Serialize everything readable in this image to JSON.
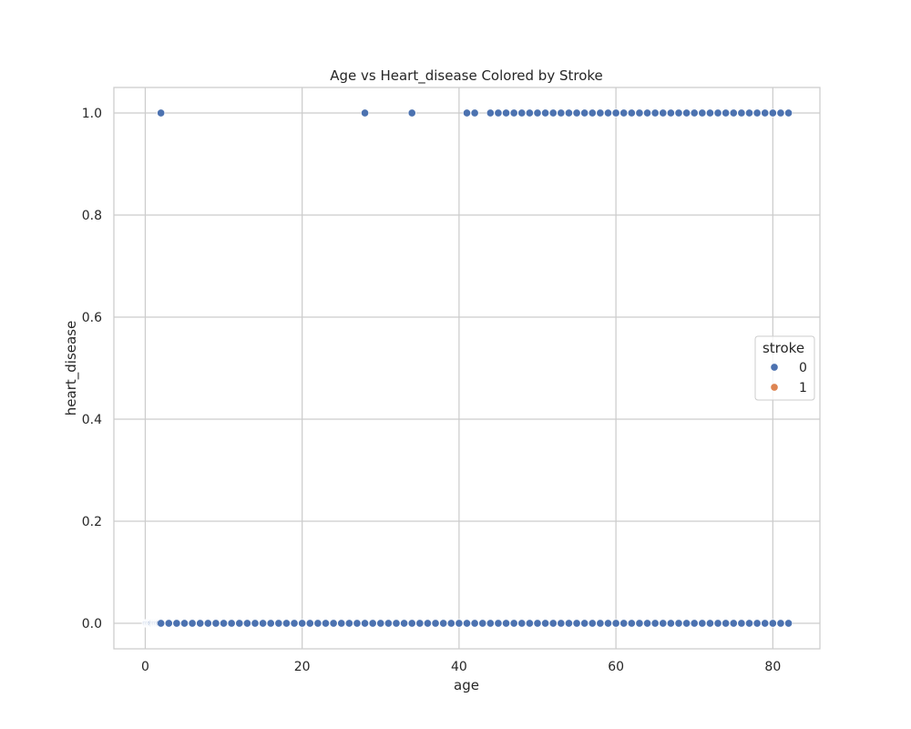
{
  "chart_data": {
    "type": "scatter",
    "title": "Age vs Heart_disease Colored by Stroke",
    "xlabel": "age",
    "ylabel": "heart_disease",
    "xlim": [
      -4.0,
      86.0
    ],
    "ylim": [
      -0.05,
      1.05
    ],
    "xticks": [
      0,
      20,
      40,
      60,
      80
    ],
    "yticks": [
      0.0,
      0.2,
      0.4,
      0.6,
      0.8,
      1.0
    ],
    "xtick_labels": [
      "0",
      "20",
      "40",
      "60",
      "80"
    ],
    "ytick_labels": [
      "0.0",
      "0.2",
      "0.4",
      "0.6",
      "0.8",
      "1.0"
    ],
    "grid": true,
    "legend": {
      "title": "stroke",
      "placement": "center-right",
      "entries": [
        {
          "label": "0",
          "color": "#4c72b0"
        },
        {
          "label": "1",
          "color": "#dd8452"
        }
      ]
    },
    "series": [
      {
        "name": "0",
        "color": "#4c72b0",
        "points": [
          [
            0.08,
            0
          ],
          [
            0.16,
            0
          ],
          [
            0.24,
            0
          ],
          [
            0.32,
            0
          ],
          [
            0.4,
            0
          ],
          [
            0.48,
            0
          ],
          [
            0.56,
            0
          ],
          [
            0.64,
            0
          ],
          [
            0.72,
            0
          ],
          [
            0.8,
            0
          ],
          [
            0.88,
            0
          ],
          [
            1.0,
            0
          ],
          [
            1.08,
            0
          ],
          [
            1.16,
            0
          ],
          [
            1.24,
            0
          ],
          [
            1.32,
            0
          ],
          [
            1.4,
            0
          ],
          [
            1.48,
            0
          ],
          [
            1.56,
            0
          ],
          [
            1.64,
            0
          ],
          [
            1.72,
            0
          ],
          [
            1.8,
            0
          ],
          [
            1.88,
            0
          ],
          [
            2,
            0
          ],
          [
            3,
            0
          ],
          [
            4,
            0
          ],
          [
            5,
            0
          ],
          [
            6,
            0
          ],
          [
            7,
            0
          ],
          [
            8,
            0
          ],
          [
            9,
            0
          ],
          [
            10,
            0
          ],
          [
            11,
            0
          ],
          [
            12,
            0
          ],
          [
            13,
            0
          ],
          [
            14,
            0
          ],
          [
            15,
            0
          ],
          [
            16,
            0
          ],
          [
            17,
            0
          ],
          [
            18,
            0
          ],
          [
            19,
            0
          ],
          [
            20,
            0
          ],
          [
            21,
            0
          ],
          [
            22,
            0
          ],
          [
            23,
            0
          ],
          [
            24,
            0
          ],
          [
            25,
            0
          ],
          [
            26,
            0
          ],
          [
            27,
            0
          ],
          [
            28,
            0
          ],
          [
            29,
            0
          ],
          [
            30,
            0
          ],
          [
            31,
            0
          ],
          [
            32,
            0
          ],
          [
            33,
            0
          ],
          [
            34,
            0
          ],
          [
            35,
            0
          ],
          [
            36,
            0
          ],
          [
            37,
            0
          ],
          [
            38,
            0
          ],
          [
            39,
            0
          ],
          [
            40,
            0
          ],
          [
            41,
            0
          ],
          [
            42,
            0
          ],
          [
            43,
            0
          ],
          [
            44,
            0
          ],
          [
            45,
            0
          ],
          [
            46,
            0
          ],
          [
            47,
            0
          ],
          [
            48,
            0
          ],
          [
            49,
            0
          ],
          [
            50,
            0
          ],
          [
            51,
            0
          ],
          [
            52,
            0
          ],
          [
            53,
            0
          ],
          [
            54,
            0
          ],
          [
            55,
            0
          ],
          [
            56,
            0
          ],
          [
            57,
            0
          ],
          [
            58,
            0
          ],
          [
            59,
            0
          ],
          [
            60,
            0
          ],
          [
            61,
            0
          ],
          [
            62,
            0
          ],
          [
            63,
            0
          ],
          [
            64,
            0
          ],
          [
            65,
            0
          ],
          [
            66,
            0
          ],
          [
            67,
            0
          ],
          [
            68,
            0
          ],
          [
            69,
            0
          ],
          [
            70,
            0
          ],
          [
            71,
            0
          ],
          [
            72,
            0
          ],
          [
            73,
            0
          ],
          [
            74,
            0
          ],
          [
            75,
            0
          ],
          [
            76,
            0
          ],
          [
            77,
            0
          ],
          [
            78,
            0
          ],
          [
            79,
            0
          ],
          [
            80,
            0
          ],
          [
            81,
            0
          ],
          [
            82,
            0
          ],
          [
            2,
            1
          ],
          [
            28,
            1
          ],
          [
            34,
            1
          ],
          [
            41,
            1
          ],
          [
            42,
            1
          ],
          [
            44,
            1
          ],
          [
            45,
            1
          ],
          [
            46,
            1
          ],
          [
            47,
            1
          ],
          [
            48,
            1
          ],
          [
            49,
            1
          ],
          [
            50,
            1
          ],
          [
            51,
            1
          ],
          [
            52,
            1
          ],
          [
            53,
            1
          ],
          [
            54,
            1
          ],
          [
            55,
            1
          ],
          [
            56,
            1
          ],
          [
            57,
            1
          ],
          [
            58,
            1
          ],
          [
            59,
            1
          ],
          [
            60,
            1
          ],
          [
            61,
            1
          ],
          [
            62,
            1
          ],
          [
            63,
            1
          ],
          [
            64,
            1
          ],
          [
            65,
            1
          ],
          [
            66,
            1
          ],
          [
            67,
            1
          ],
          [
            68,
            1
          ],
          [
            69,
            1
          ],
          [
            70,
            1
          ],
          [
            71,
            1
          ],
          [
            72,
            1
          ],
          [
            73,
            1
          ],
          [
            74,
            1
          ],
          [
            75,
            1
          ],
          [
            76,
            1
          ],
          [
            77,
            1
          ],
          [
            78,
            1
          ],
          [
            79,
            1
          ],
          [
            80,
            1
          ],
          [
            81,
            1
          ],
          [
            82,
            1
          ]
        ]
      },
      {
        "name": "1",
        "color": "#dd8452",
        "points": []
      }
    ]
  }
}
